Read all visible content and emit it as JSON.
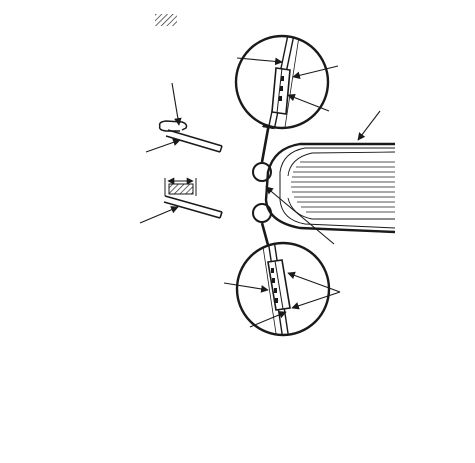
{
  "figure": {
    "legend_symbol": "hatched-area-swatch",
    "components": [
      "windshield-glass",
      "upper-molding-clip-detail",
      "lower-molding-clip-detail",
      "molding-edge-section",
      "adhesive-bead-section"
    ],
    "colors": {
      "ink": "#1a1a1a",
      "paper": "#ffffff"
    }
  }
}
